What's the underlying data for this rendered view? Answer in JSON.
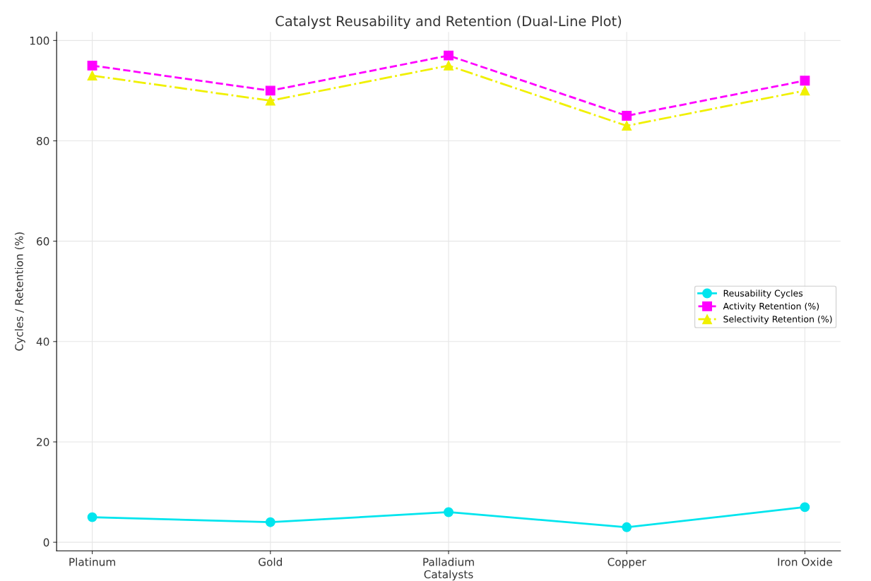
{
  "chart_data": {
    "type": "line",
    "title": "Catalyst Reusability and Retention (Dual-Line Plot)",
    "xlabel": "Catalysts",
    "ylabel": "Cycles / Retention (%)",
    "categories": [
      "Platinum",
      "Gold",
      "Palladium",
      "Copper",
      "Iron Oxide"
    ],
    "series": [
      {
        "name": "Reusability Cycles",
        "color": "#00e5ee",
        "values": [
          5,
          4,
          6,
          3,
          7
        ],
        "marker": "circle",
        "line_style": "solid"
      },
      {
        "name": "Activity Retention (%)",
        "color": "#ff00ff",
        "values": [
          95,
          90,
          97,
          85,
          92
        ],
        "marker": "square",
        "line_style": "dashed"
      },
      {
        "name": "Selectivity Retention (%)",
        "color": "#f0f000",
        "values": [
          93,
          88,
          95,
          83,
          90
        ],
        "marker": "triangle",
        "line_style": "dashdot"
      }
    ],
    "ylim": [
      -1.7,
      101.7
    ],
    "yticks": [
      0,
      20,
      40,
      60,
      80,
      100
    ],
    "grid": true,
    "legend": "right"
  }
}
